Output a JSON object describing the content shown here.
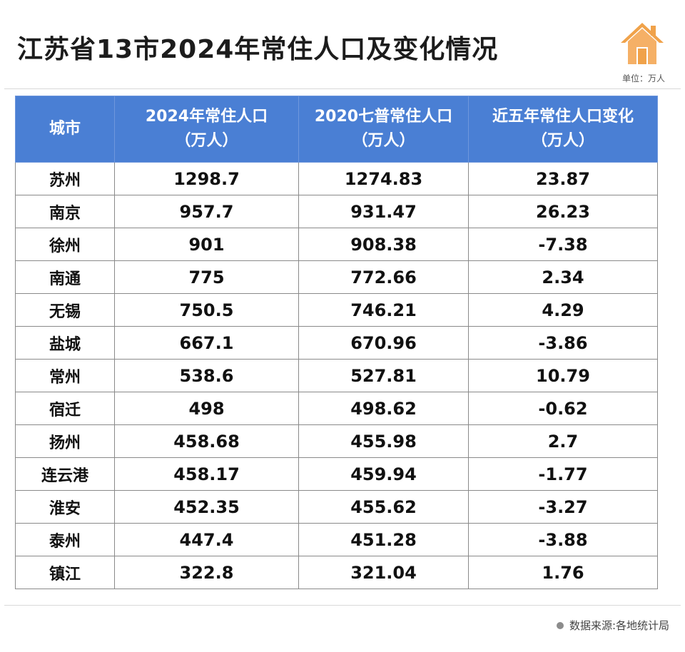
{
  "title": "江苏省13市2024年常住人口及变化情况",
  "unit_note": "单位：万人",
  "colors": {
    "header_bg": "#4a7fd4",
    "icon": "#f0a24a"
  },
  "icon": "house-icon",
  "table": {
    "headers": [
      {
        "line1": "城市",
        "line2": ""
      },
      {
        "line1": "2024年常住人口",
        "line2": "（万人）"
      },
      {
        "line1": "2020七普常住人口",
        "line2": "（万人）"
      },
      {
        "line1": "近五年常住人口变化",
        "line2": "（万人）"
      }
    ],
    "rows": [
      [
        "苏州",
        "1298.7",
        "1274.83",
        "23.87"
      ],
      [
        "南京",
        "957.7",
        "931.47",
        "26.23"
      ],
      [
        "徐州",
        "901",
        "908.38",
        "-7.38"
      ],
      [
        "南通",
        "775",
        "772.66",
        "2.34"
      ],
      [
        "无锡",
        "750.5",
        "746.21",
        "4.29"
      ],
      [
        "盐城",
        "667.1",
        "670.96",
        "-3.86"
      ],
      [
        "常州",
        "538.6",
        "527.81",
        "10.79"
      ],
      [
        "宿迁",
        "498",
        "498.62",
        "-0.62"
      ],
      [
        "扬州",
        "458.68",
        "455.98",
        "2.7"
      ],
      [
        "连云港",
        "458.17",
        "459.94",
        "-1.77"
      ],
      [
        "淮安",
        "452.35",
        "455.62",
        "-3.27"
      ],
      [
        "泰州",
        "447.4",
        "451.28",
        "-3.88"
      ],
      [
        "镇江",
        "322.8",
        "321.04",
        "1.76"
      ]
    ]
  },
  "source": "数据来源:各地统计局"
}
